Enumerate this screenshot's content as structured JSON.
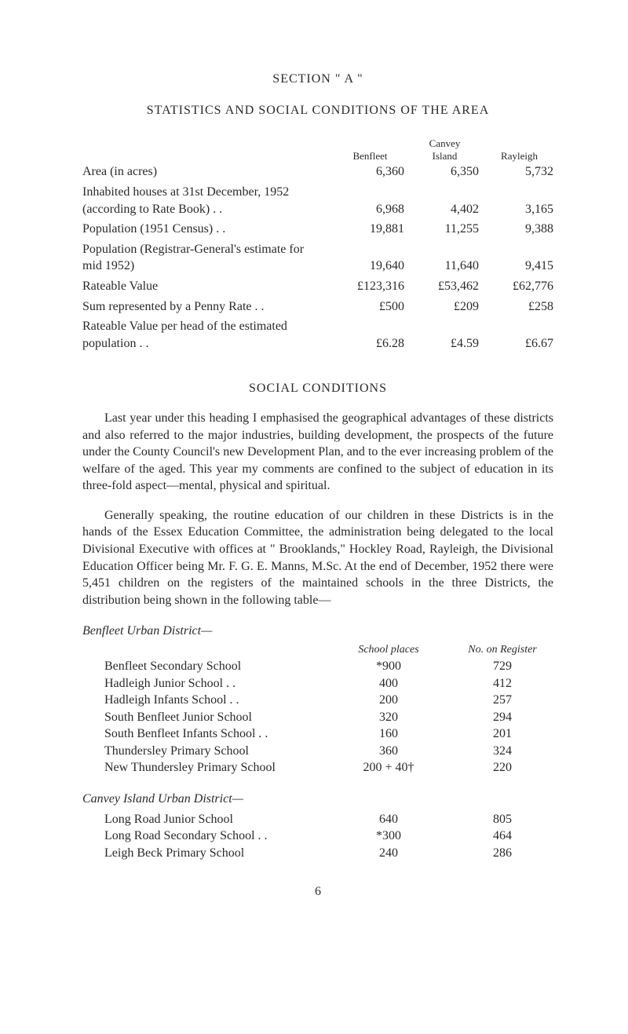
{
  "section_title": "SECTION \" A \"",
  "main_title": "STATISTICS AND SOCIAL CONDITIONS OF THE AREA",
  "stats": {
    "headers": {
      "col1_line1": "",
      "col1_line2": "Benfleet",
      "col2_line1": "Canvey",
      "col2_line2": "Island",
      "col3_line1": "",
      "col3_line2": "Rayleigh"
    },
    "rows": [
      {
        "label": "Area (in acres)",
        "c1": "6,360",
        "c2": "6,350",
        "c3": "5,732"
      },
      {
        "label": "Inhabited houses at 31st December, 1952 (according to Rate Book)  . .",
        "c1": "6,968",
        "c2": "4,402",
        "c3": "3,165"
      },
      {
        "label": "Population (1951 Census)  . .",
        "c1": "19,881",
        "c2": "11,255",
        "c3": "9,388"
      },
      {
        "label": "Population (Registrar-General's estimate for mid 1952)",
        "c1": "19,640",
        "c2": "11,640",
        "c3": "9,415"
      },
      {
        "label": "Rateable Value",
        "c1": "£123,316",
        "c2": "£53,462",
        "c3": "£62,776"
      },
      {
        "label": "Sum represented by a Penny Rate . .",
        "c1": "£500",
        "c2": "£209",
        "c3": "£258"
      },
      {
        "label": "Rateable Value per head of the estimated population . .",
        "c1": "£6.28",
        "c2": "£4.59",
        "c3": "£6.67"
      }
    ]
  },
  "subheading": "SOCIAL CONDITIONS",
  "para1": "Last year under this heading I emphasised the geographical advantages of these districts and also referred to the major industries, building development, the prospects of the future under the County Council's new Development Plan, and to the ever increasing problem of the welfare of the aged. This year my comments are confined to the subject of education in its three-fold aspect—mental, physical and spiritual.",
  "para2": "Generally speaking, the routine education of our children in these Districts is in the hands of the Essex Education Committee, the administration being delegated to the local Divisional Executive with offices at \" Brooklands,\" Hockley Road, Rayleigh, the Divisional Education Officer being Mr. F. G. E. Manns, M.Sc. At the end of December, 1952 there were 5,451 children on the registers of the maintained schools in the three Districts, the distribution being shown in the following table—",
  "benfleet": {
    "title": "Benfleet Urban District—",
    "header_places": "School places",
    "header_register": "No. on Register",
    "rows": [
      {
        "name": "Benfleet Secondary School",
        "places": "*900",
        "reg": "729"
      },
      {
        "name": "Hadleigh Junior School . .",
        "places": "400",
        "reg": "412"
      },
      {
        "name": "Hadleigh Infants School . .",
        "places": "200",
        "reg": "257"
      },
      {
        "name": "South Benfleet Junior School",
        "places": "320",
        "reg": "294"
      },
      {
        "name": "South Benfleet Infants School . .",
        "places": "160",
        "reg": "201"
      },
      {
        "name": "Thundersley Primary School",
        "places": "360",
        "reg": "324"
      },
      {
        "name": "New Thundersley Primary School",
        "places": "200 + 40†",
        "reg": "220"
      }
    ]
  },
  "canvey": {
    "title": "Canvey Island Urban District—",
    "rows": [
      {
        "name": "Long Road Junior School",
        "places": "640",
        "reg": "805"
      },
      {
        "name": "Long Road Secondary School . .",
        "places": "*300",
        "reg": "464"
      },
      {
        "name": "Leigh Beck Primary School",
        "places": "240",
        "reg": "286"
      }
    ]
  },
  "page_number": "6"
}
